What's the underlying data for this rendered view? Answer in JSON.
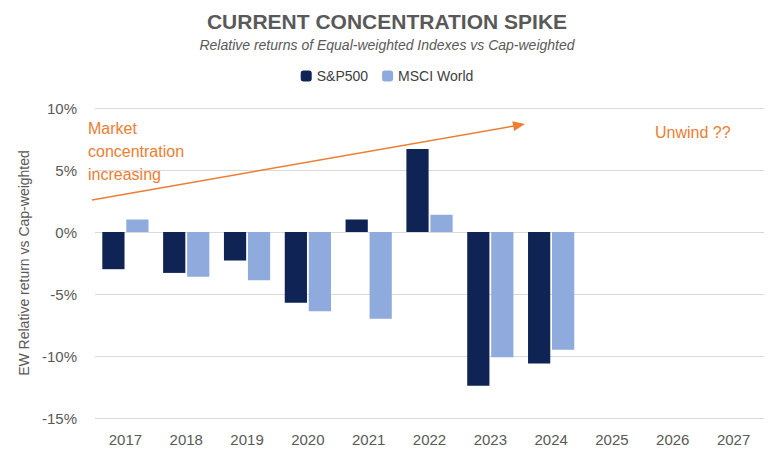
{
  "chart_data": {
    "type": "bar",
    "title": "CURRENT CONCENTRATION SPIKE",
    "subtitle": "Relative returns of Equal-weighted Indexes vs Cap-weighted",
    "y_label": "EW Relative return vs Cap-weighted",
    "annotations": [
      "Market\nconcentration\nincreasing",
      "Unwind ??"
    ],
    "categories": [
      "2017",
      "2018",
      "2019",
      "2020",
      "2021",
      "2022",
      "2023",
      "2024",
      "2025",
      "2026",
      "2027"
    ],
    "series": [
      {
        "name": "S&P500",
        "color": "#0f2454",
        "values": [
          -3.0,
          -3.3,
          -2.3,
          -5.7,
          1.0,
          6.7,
          -12.4,
          -10.6,
          null,
          null,
          null
        ]
      },
      {
        "name": "MSCI World",
        "color": "#8faadc",
        "values": [
          1.0,
          -3.6,
          -3.9,
          -6.4,
          -7.0,
          1.4,
          -10.1,
          -9.5,
          null,
          null,
          null
        ]
      }
    ],
    "ylim": [
      -15,
      10
    ],
    "yticks": [
      {
        "value": -15,
        "label": "-15%"
      },
      {
        "value": -10,
        "label": "-10%"
      },
      {
        "value": -5,
        "label": "-5%"
      },
      {
        "value": 0,
        "label": "0%"
      },
      {
        "value": 5,
        "label": "5%"
      },
      {
        "value": 10,
        "label": "10%"
      }
    ],
    "grid": true,
    "legend": "top"
  }
}
